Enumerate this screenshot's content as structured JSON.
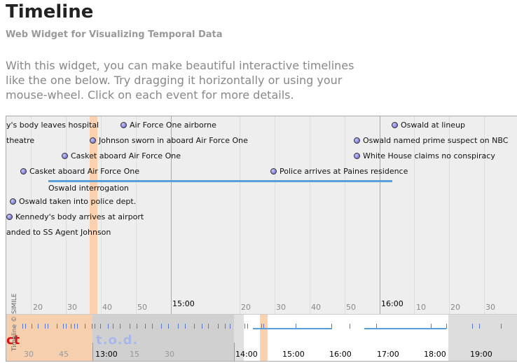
{
  "header": {
    "title": "Timeline",
    "subtitle": "Web Widget for Visualizing Temporal Data",
    "intro": "With this widget, you can make beautiful interactive timelines like the one below. Try dragging it horizontally or using your mouse-wheel. Click on each event for more details."
  },
  "timeline": {
    "events": [
      {
        "label": "y's body leaves hospital",
        "dot": false
      },
      {
        "label": "theatre",
        "dot": false
      },
      {
        "label": "Air Force One airborne",
        "dot": true
      },
      {
        "label": "Johnson sworn in aboard Air Force One",
        "dot": true
      },
      {
        "label": "Casket aboard Air Force One",
        "dot": true
      },
      {
        "label": "Casket aboard Air Force One",
        "dot": true
      },
      {
        "label": "Police arrives at Paines residence",
        "dot": true
      },
      {
        "label": "Oswald at lineup",
        "dot": true
      },
      {
        "label": "Oswald named prime suspect on NBC",
        "dot": true
      },
      {
        "label": "White House claims no conspiracy",
        "dot": true
      },
      {
        "label": "Oswald interrogation",
        "dot": false
      },
      {
        "label": "Oswald taken into police dept.",
        "dot": true
      },
      {
        "label": "Kennedy's body arrives at airport",
        "dot": true
      },
      {
        "label": "anded to SS Agent Johnson",
        "dot": false
      }
    ],
    "upper_scale": [
      "20",
      "30",
      "40",
      "50",
      "15:00",
      "20",
      "30",
      "40",
      "50",
      "16:00",
      "10",
      "20",
      "30"
    ],
    "lower_overlay": {
      "left": "ct",
      "right": "t.o.d."
    },
    "lower_scale": [
      "30",
      "45",
      "13:00",
      "15",
      "30",
      "14:00",
      "15:00",
      "16:00",
      "17:00",
      "18:00",
      "19:00"
    ],
    "credit": "Timeline © SIMILE",
    "colors": {
      "highlight": "#fbd2ad",
      "duration": "#58a0dc",
      "event_dot": "#6060d0"
    }
  }
}
